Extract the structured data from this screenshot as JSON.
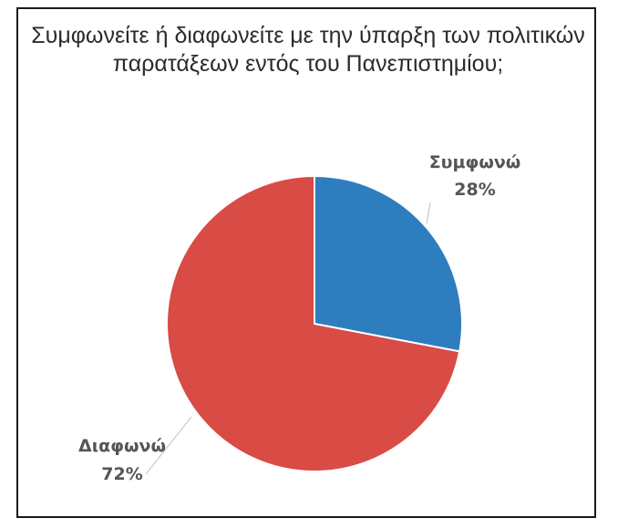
{
  "chart_data": {
    "type": "pie",
    "title_line1": "Συμφωνείτε ή διαφωνείτε με την ύπαρξη των πολιτικών",
    "title_line2": "παρατάξεων εντός του Πανεπιστημίου;",
    "slices": [
      {
        "label": "Συμφωνώ",
        "value": 28,
        "display": "28%",
        "color": "#2e7dbf"
      },
      {
        "label": "Διαφωνώ",
        "value": 72,
        "display": "72%",
        "color": "#d94b45"
      }
    ],
    "start_angle": "12 o'clock",
    "direction": "clockwise",
    "legend": "none"
  }
}
